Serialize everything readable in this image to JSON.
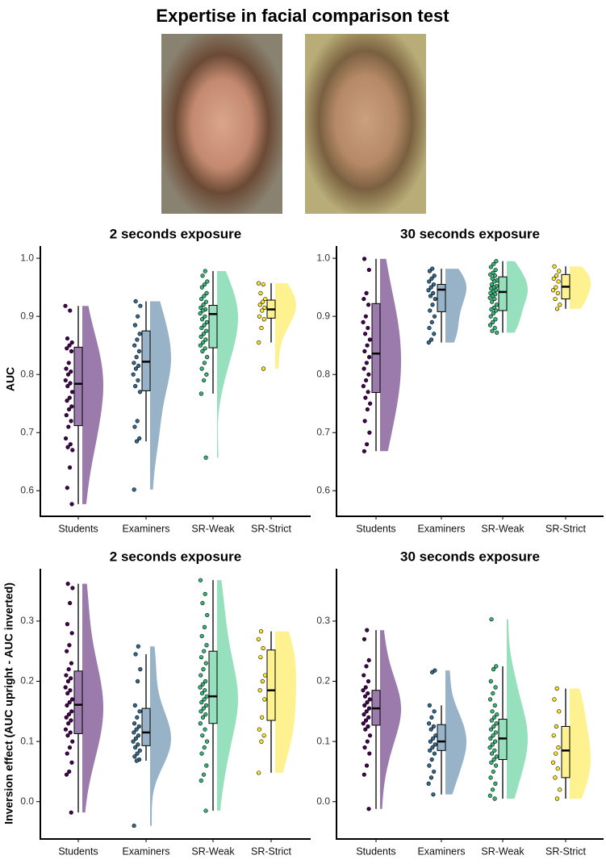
{
  "title": "Expertise in facial comparison test",
  "chart_data": [
    {
      "type": "raincloud",
      "title": "2 seconds exposure",
      "ylabel": "AUC",
      "categories": [
        "Students",
        "Examiners",
        "SR-Weak",
        "SR-Strict"
      ],
      "ylim": [
        0.556,
        1.021
      ],
      "yticks": [
        0.6,
        0.7,
        0.8,
        0.9,
        {
          "value": 1,
          "label": "1.0"
        }
      ],
      "groups": [
        {
          "color": "#440154",
          "cloud": "#9b7aac",
          "whisker_low": 0.577,
          "q1": 0.712,
          "median": 0.784,
          "q3": 0.847,
          "whisker_high": 0.918,
          "points": [
            0.918,
            0.91,
            0.862,
            0.855,
            0.85,
            0.845,
            0.84,
            0.82,
            0.81,
            0.805,
            0.8,
            0.79,
            0.785,
            0.78,
            0.77,
            0.76,
            0.755,
            0.745,
            0.74,
            0.73,
            0.72,
            0.71,
            0.69,
            0.68,
            0.675,
            0.67,
            0.64,
            0.605,
            0.577
          ]
        },
        {
          "color": "#31688e",
          "cloud": "#98b3c7",
          "whisker_low": 0.685,
          "q1": 0.772,
          "median": 0.822,
          "q3": 0.875,
          "whisker_high": 0.926,
          "points": [
            0.926,
            0.918,
            0.9,
            0.885,
            0.87,
            0.86,
            0.85,
            0.84,
            0.83,
            0.82,
            0.815,
            0.81,
            0.8,
            0.79,
            0.78,
            0.77,
            0.72,
            0.71,
            0.69,
            0.685,
            0.602
          ]
        },
        {
          "color": "#35b779",
          "cloud": "#96e0bd",
          "whisker_low": 0.767,
          "q1": 0.846,
          "median": 0.904,
          "q3": 0.919,
          "whisker_high": 0.978,
          "points": [
            0.978,
            0.97,
            0.96,
            0.955,
            0.95,
            0.94,
            0.935,
            0.93,
            0.925,
            0.92,
            0.915,
            0.912,
            0.91,
            0.905,
            0.9,
            0.895,
            0.89,
            0.885,
            0.88,
            0.875,
            0.87,
            0.865,
            0.86,
            0.855,
            0.85,
            0.845,
            0.84,
            0.83,
            0.82,
            0.81,
            0.8,
            0.79,
            0.767,
            0.657
          ]
        },
        {
          "color": "#fde725",
          "cloud": "#fef190",
          "whisker_low": 0.855,
          "q1": 0.897,
          "median": 0.912,
          "q3": 0.928,
          "whisker_high": 0.957,
          "points": [
            0.957,
            0.955,
            0.94,
            0.93,
            0.925,
            0.92,
            0.915,
            0.91,
            0.9,
            0.895,
            0.88,
            0.855,
            0.81
          ]
        }
      ]
    },
    {
      "type": "raincloud",
      "title": "30 seconds exposure",
      "categories": [
        "Students",
        "Examiners",
        "SR-Weak",
        "SR-Strict"
      ],
      "ylim": [
        0.556,
        1.021
      ],
      "yticks": [
        0.6,
        0.7,
        0.8,
        0.9,
        {
          "value": 1,
          "label": "1.0"
        }
      ],
      "groups": [
        {
          "color": "#440154",
          "cloud": "#9b7aac",
          "whisker_low": 0.668,
          "q1": 0.769,
          "median": 0.836,
          "q3": 0.922,
          "whisker_high": 0.999,
          "points": [
            0.999,
            0.98,
            0.94,
            0.93,
            0.92,
            0.9,
            0.89,
            0.88,
            0.87,
            0.86,
            0.85,
            0.84,
            0.83,
            0.82,
            0.81,
            0.8,
            0.79,
            0.78,
            0.77,
            0.76,
            0.75,
            0.74,
            0.72,
            0.7,
            0.68,
            0.668
          ]
        },
        {
          "color": "#31688e",
          "cloud": "#98b3c7",
          "whisker_low": 0.855,
          "q1": 0.908,
          "median": 0.946,
          "q3": 0.955,
          "whisker_high": 0.982,
          "points": [
            0.982,
            0.978,
            0.97,
            0.965,
            0.96,
            0.955,
            0.95,
            0.945,
            0.94,
            0.935,
            0.93,
            0.92,
            0.91,
            0.9,
            0.89,
            0.88,
            0.87,
            0.86,
            0.855
          ]
        },
        {
          "color": "#35b779",
          "cloud": "#96e0bd",
          "whisker_low": 0.872,
          "q1": 0.91,
          "median": 0.942,
          "q3": 0.968,
          "whisker_high": 0.995,
          "points": [
            0.995,
            0.99,
            0.985,
            0.98,
            0.975,
            0.972,
            0.97,
            0.965,
            0.962,
            0.96,
            0.955,
            0.952,
            0.95,
            0.948,
            0.945,
            0.942,
            0.94,
            0.938,
            0.935,
            0.932,
            0.93,
            0.925,
            0.92,
            0.915,
            0.912,
            0.91,
            0.905,
            0.9,
            0.895,
            0.89,
            0.885,
            0.88,
            0.875,
            0.872
          ]
        },
        {
          "color": "#fde725",
          "cloud": "#fef190",
          "whisker_low": 0.913,
          "q1": 0.93,
          "median": 0.951,
          "q3": 0.972,
          "whisker_high": 0.986,
          "points": [
            0.986,
            0.978,
            0.97,
            0.965,
            0.96,
            0.95,
            0.945,
            0.94,
            0.93,
            0.92,
            0.913
          ]
        }
      ]
    },
    {
      "type": "raincloud",
      "title": "2 seconds exposure",
      "ylabel": "Inversion effect (AUC upright - AUC inverted)",
      "categories": [
        "Students",
        "Examiners",
        "SR-Weak",
        "SR-Strict"
      ],
      "ylim": [
        -0.062,
        0.387
      ],
      "yticks": [
        {
          "value": 0,
          "label": "0.0"
        },
        0.1,
        0.2,
        0.3
      ],
      "groups": [
        {
          "color": "#440154",
          "cloud": "#9b7aac",
          "whisker_low": -0.018,
          "q1": 0.113,
          "median": 0.161,
          "q3": 0.217,
          "whisker_high": 0.362,
          "points": [
            0.362,
            0.355,
            0.33,
            0.295,
            0.28,
            0.26,
            0.25,
            0.23,
            0.22,
            0.21,
            0.205,
            0.2,
            0.19,
            0.185,
            0.18,
            0.17,
            0.165,
            0.16,
            0.15,
            0.145,
            0.14,
            0.135,
            0.13,
            0.12,
            0.115,
            0.11,
            0.1,
            0.09,
            0.08,
            0.065,
            0.05,
            0.045,
            -0.018
          ]
        },
        {
          "color": "#31688e",
          "cloud": "#98b3c7",
          "whisker_low": 0.068,
          "q1": 0.093,
          "median": 0.115,
          "q3": 0.155,
          "whisker_high": 0.245,
          "points": [
            0.258,
            0.245,
            0.22,
            0.2,
            0.16,
            0.15,
            0.14,
            0.13,
            0.125,
            0.12,
            0.115,
            0.11,
            0.105,
            0.1,
            0.095,
            0.09,
            0.085,
            0.08,
            0.075,
            0.07,
            0.068,
            -0.04
          ]
        },
        {
          "color": "#35b779",
          "cloud": "#96e0bd",
          "whisker_low": -0.015,
          "q1": 0.13,
          "median": 0.175,
          "q3": 0.25,
          "whisker_high": 0.368,
          "points": [
            0.368,
            0.345,
            0.33,
            0.31,
            0.29,
            0.275,
            0.26,
            0.25,
            0.24,
            0.23,
            0.22,
            0.21,
            0.2,
            0.195,
            0.19,
            0.185,
            0.18,
            0.175,
            0.17,
            0.165,
            0.16,
            0.155,
            0.15,
            0.145,
            0.14,
            0.13,
            0.12,
            0.11,
            0.1,
            0.09,
            0.08,
            0.06,
            0.045,
            0.035,
            -0.015
          ]
        },
        {
          "color": "#fde725",
          "cloud": "#fef190",
          "whisker_low": 0.048,
          "q1": 0.135,
          "median": 0.185,
          "q3": 0.252,
          "whisker_high": 0.283,
          "points": [
            0.283,
            0.27,
            0.255,
            0.24,
            0.21,
            0.2,
            0.185,
            0.17,
            0.14,
            0.12,
            0.11,
            0.1,
            0.048
          ]
        }
      ]
    },
    {
      "type": "raincloud",
      "title": "30 seconds exposure",
      "categories": [
        "Students",
        "Examiners",
        "SR-Weak",
        "SR-Strict"
      ],
      "ylim": [
        -0.062,
        0.387
      ],
      "yticks": [
        {
          "value": 0,
          "label": "0.0"
        },
        0.1,
        0.2,
        0.3
      ],
      "groups": [
        {
          "color": "#440154",
          "cloud": "#9b7aac",
          "whisker_low": -0.012,
          "q1": 0.127,
          "median": 0.155,
          "q3": 0.185,
          "whisker_high": 0.285,
          "points": [
            0.285,
            0.27,
            0.235,
            0.225,
            0.21,
            0.2,
            0.19,
            0.185,
            0.18,
            0.175,
            0.17,
            0.165,
            0.16,
            0.155,
            0.15,
            0.145,
            0.14,
            0.135,
            0.13,
            0.125,
            0.12,
            0.11,
            0.1,
            0.09,
            0.08,
            0.06,
            0.045,
            -0.012
          ]
        },
        {
          "color": "#31688e",
          "cloud": "#98b3c7",
          "whisker_low": 0.012,
          "q1": 0.085,
          "median": 0.1,
          "q3": 0.128,
          "whisker_high": 0.16,
          "points": [
            0.218,
            0.215,
            0.16,
            0.15,
            0.14,
            0.13,
            0.125,
            0.12,
            0.11,
            0.105,
            0.1,
            0.095,
            0.09,
            0.085,
            0.08,
            0.07,
            0.06,
            0.05,
            0.04,
            0.03,
            0.012
          ]
        },
        {
          "color": "#35b779",
          "cloud": "#96e0bd",
          "whisker_low": 0.005,
          "q1": 0.07,
          "median": 0.105,
          "q3": 0.137,
          "whisker_high": 0.225,
          "points": [
            0.303,
            0.225,
            0.22,
            0.2,
            0.19,
            0.18,
            0.17,
            0.16,
            0.15,
            0.145,
            0.14,
            0.135,
            0.13,
            0.125,
            0.12,
            0.115,
            0.11,
            0.105,
            0.1,
            0.095,
            0.09,
            0.085,
            0.08,
            0.075,
            0.07,
            0.065,
            0.06,
            0.05,
            0.04,
            0.03,
            0.02,
            0.01,
            0.005
          ]
        },
        {
          "color": "#fde725",
          "cloud": "#fef190",
          "whisker_low": 0.005,
          "q1": 0.04,
          "median": 0.085,
          "q3": 0.125,
          "whisker_high": 0.188,
          "points": [
            0.188,
            0.17,
            0.15,
            0.125,
            0.11,
            0.09,
            0.08,
            0.065,
            0.055,
            0.04,
            0.02,
            0.005
          ]
        }
      ]
    }
  ]
}
